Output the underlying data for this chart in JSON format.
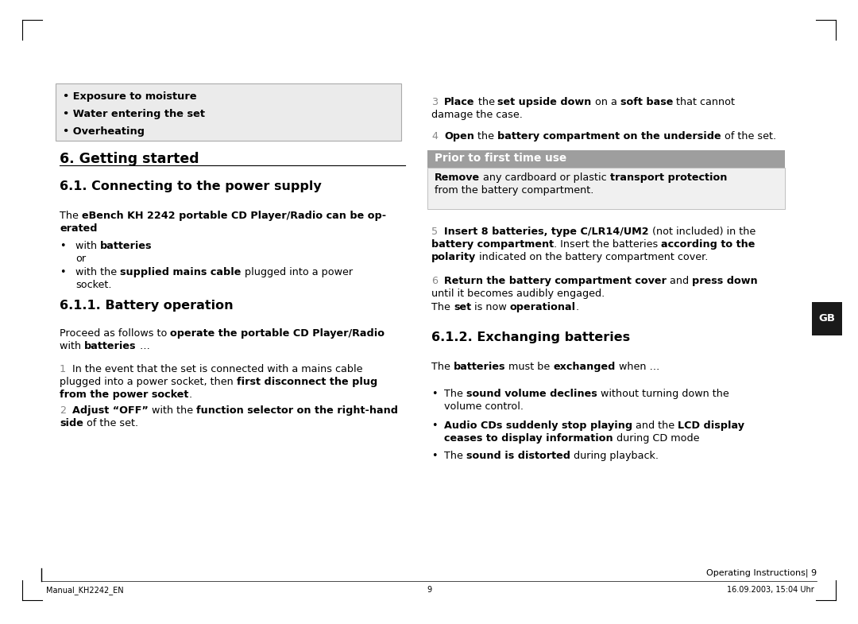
{
  "bg_color": "#ffffff",
  "footer_left": "Manual_KH2242_EN",
  "footer_center": "9",
  "footer_right": "16.09.2003, 15:04 Uhr",
  "page_num_right": "Operating Instructions| 9",
  "gb_label": "GB"
}
